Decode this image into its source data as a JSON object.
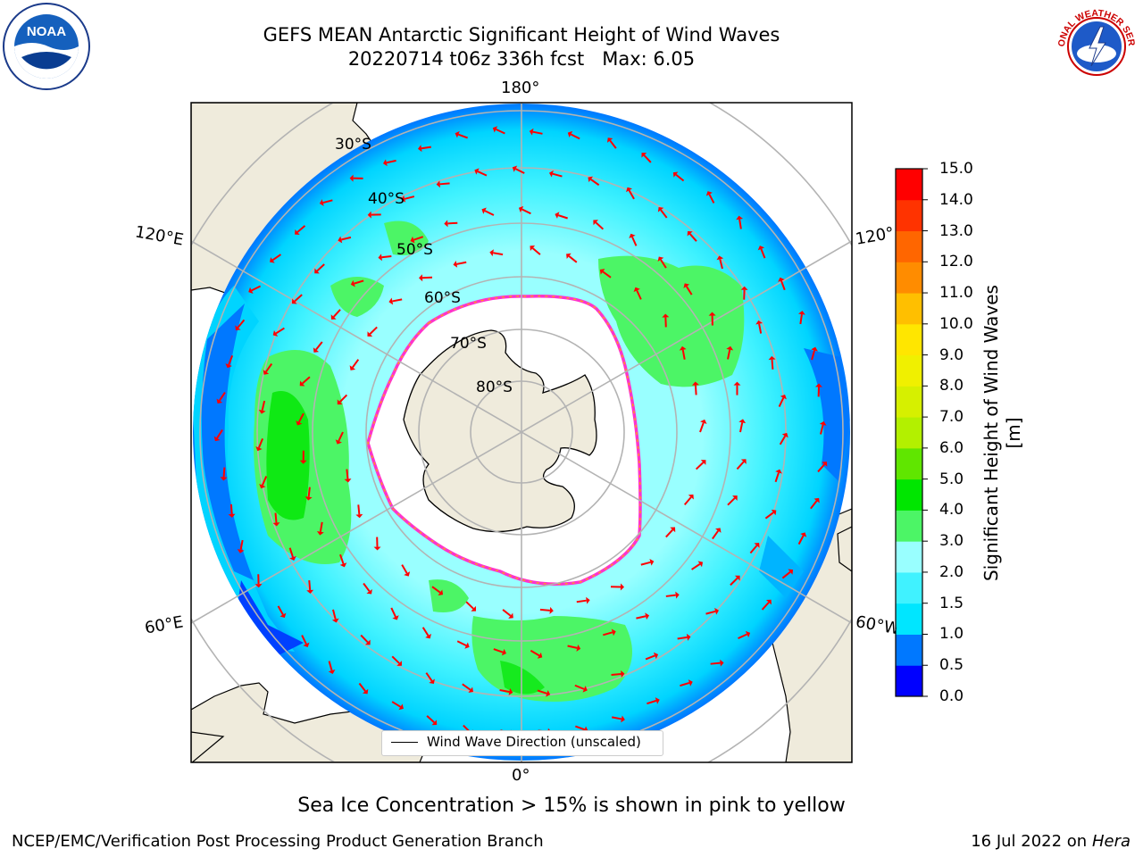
{
  "title": {
    "line1": "GEFS MEAN Antarctic Significant Height of Wind Waves",
    "line2": "20220714 t06z 336h fcst   Max: 6.05"
  },
  "logos": {
    "left": "noaa-logo",
    "right": "national-weather-service-logo",
    "right_text": "NATIONAL WEATHER SERVICE"
  },
  "map": {
    "projection": "south polar stereographic",
    "longitude_labels": {
      "top": "180°",
      "upper_left": "120°E",
      "lower_left": "60°E",
      "bottom": "0°",
      "upper_right": "120°",
      "lower_right": "60°W"
    },
    "latitude_labels": [
      "30°S",
      "40°S",
      "50°S",
      "60°S",
      "70°S",
      "80°S"
    ],
    "colors": {
      "land": "#efebdc",
      "ice": "#ffffff",
      "ice_edge": "#ff33cc",
      "arrows": "#ff0000",
      "grid": "#b3b3b3"
    },
    "legend": "Wind Wave Direction (unscaled)"
  },
  "colorbar": {
    "label": "Significant Height of Wind Waves [m]",
    "ticks": [
      "0.0",
      "0.5",
      "1.0",
      "1.5",
      "2.0",
      "3.0",
      "4.0",
      "5.0",
      "6.0",
      "7.0",
      "8.0",
      "9.0",
      "10.0",
      "11.0",
      "12.0",
      "13.0",
      "14.0",
      "15.0"
    ],
    "colors": [
      "#0000ff",
      "#0078ff",
      "#00e6ff",
      "#40f2ff",
      "#99ffff",
      "#4cf566",
      "#00e600",
      "#60e600",
      "#b3f000",
      "#d6f000",
      "#f0f000",
      "#ffe600",
      "#ffbf00",
      "#ff8c00",
      "#ff6600",
      "#ff3300",
      "#ff0000"
    ]
  },
  "footer": {
    "note": "Sea Ice Concentration > 15% is shown in pink to yellow",
    "left": "NCEP/EMC/Verification Post Processing Product Generation Branch",
    "right_prefix": "16 Jul 2022 on ",
    "right_system": "Hera"
  }
}
